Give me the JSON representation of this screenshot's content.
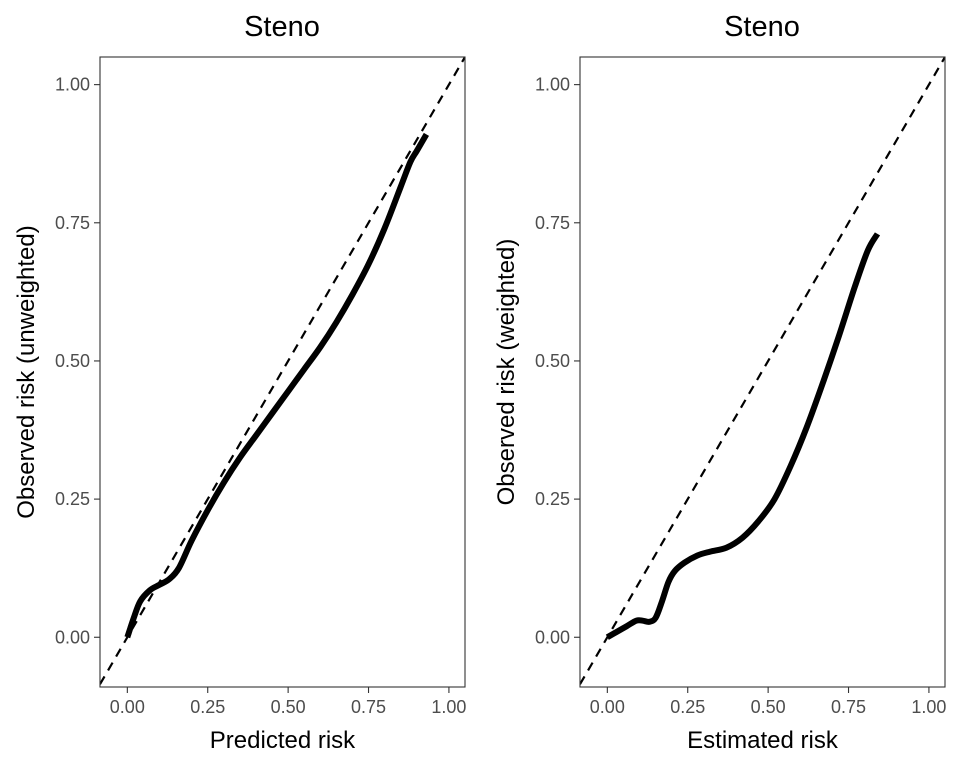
{
  "chart_data": [
    {
      "type": "line",
      "title": "Steno",
      "xlabel": "Predicted risk",
      "ylabel": "Observed risk (unweighted)",
      "xlim": [
        -0.085,
        1.05
      ],
      "ylim": [
        -0.09,
        1.05
      ],
      "x_ticks": [
        "0.00",
        "0.25",
        "0.50",
        "0.75",
        "1.00"
      ],
      "y_ticks": [
        "0.00",
        "0.25",
        "0.50",
        "0.75",
        "1.00"
      ],
      "grid": false,
      "reference_line": {
        "style": "dashed",
        "slope": 1,
        "intercept": 0
      },
      "series": [
        {
          "x": [
            0.0,
            0.02,
            0.04,
            0.07,
            0.1,
            0.13,
            0.16,
            0.2,
            0.25,
            0.3,
            0.35,
            0.4,
            0.45,
            0.5,
            0.55,
            0.6,
            0.65,
            0.7,
            0.75,
            0.8,
            0.85,
            0.88,
            0.9,
            0.93
          ],
          "y": [
            0.0,
            0.035,
            0.065,
            0.085,
            0.095,
            0.105,
            0.125,
            0.175,
            0.23,
            0.28,
            0.325,
            0.365,
            0.405,
            0.445,
            0.485,
            0.525,
            0.57,
            0.62,
            0.675,
            0.74,
            0.815,
            0.86,
            0.88,
            0.91
          ]
        }
      ]
    },
    {
      "type": "line",
      "title": "Steno",
      "xlabel": "Estimated risk",
      "ylabel": "Observed risk (weighted)",
      "xlim": [
        -0.085,
        1.05
      ],
      "ylim": [
        -0.09,
        1.05
      ],
      "x_ticks": [
        "0.00",
        "0.25",
        "0.50",
        "0.75",
        "1.00"
      ],
      "y_ticks": [
        "0.00",
        "0.25",
        "0.50",
        "0.75",
        "1.00"
      ],
      "grid": false,
      "reference_line": {
        "style": "dashed",
        "slope": 1,
        "intercept": 0
      },
      "series": [
        {
          "x": [
            0.0,
            0.03,
            0.06,
            0.09,
            0.11,
            0.13,
            0.15,
            0.17,
            0.19,
            0.21,
            0.24,
            0.28,
            0.32,
            0.37,
            0.42,
            0.47,
            0.52,
            0.57,
            0.62,
            0.67,
            0.72,
            0.77,
            0.81,
            0.84
          ],
          "y": [
            0.0,
            0.01,
            0.02,
            0.03,
            0.03,
            0.028,
            0.035,
            0.065,
            0.1,
            0.12,
            0.135,
            0.148,
            0.155,
            0.162,
            0.18,
            0.21,
            0.25,
            0.31,
            0.38,
            0.46,
            0.545,
            0.635,
            0.7,
            0.73
          ]
        }
      ]
    }
  ]
}
